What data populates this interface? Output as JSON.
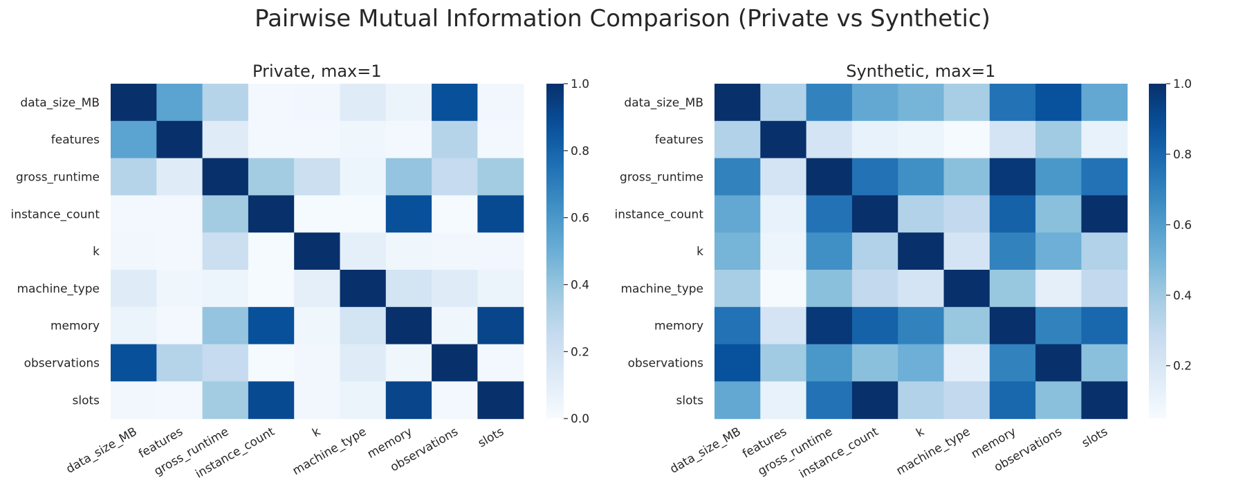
{
  "suptitle": "Pairwise Mutual Information Comparison (Private vs Synthetic)",
  "chart_data": [
    {
      "type": "heatmap",
      "title": "Private, max=1",
      "labels": [
        "data_size_MB",
        "features",
        "gross_runtime",
        "instance_count",
        "k",
        "machine_type",
        "memory",
        "observations",
        "slots"
      ],
      "colormap": "Blues",
      "colorbar": {
        "vmin": 0.0,
        "vmax": 1.0,
        "ticks": [
          "0.0",
          "0.2",
          "0.4",
          "0.6",
          "0.8",
          "1.0"
        ]
      },
      "values": [
        [
          1.0,
          0.55,
          0.3,
          0.02,
          0.03,
          0.12,
          0.06,
          0.88,
          0.03
        ],
        [
          0.55,
          1.0,
          0.12,
          0.02,
          0.02,
          0.04,
          0.02,
          0.3,
          0.02
        ],
        [
          0.3,
          0.12,
          1.0,
          0.36,
          0.22,
          0.05,
          0.4,
          0.25,
          0.36
        ],
        [
          0.02,
          0.02,
          0.36,
          1.0,
          0.01,
          0.01,
          0.88,
          0.01,
          0.9
        ],
        [
          0.03,
          0.02,
          0.22,
          0.01,
          1.0,
          0.09,
          0.04,
          0.03,
          0.03
        ],
        [
          0.12,
          0.04,
          0.05,
          0.01,
          0.09,
          1.0,
          0.18,
          0.12,
          0.06
        ],
        [
          0.06,
          0.02,
          0.4,
          0.88,
          0.04,
          0.18,
          1.0,
          0.04,
          0.92
        ],
        [
          0.88,
          0.3,
          0.25,
          0.01,
          0.03,
          0.12,
          0.04,
          1.0,
          0.02
        ],
        [
          0.03,
          0.02,
          0.36,
          0.9,
          0.03,
          0.06,
          0.92,
          0.02,
          1.0
        ]
      ]
    },
    {
      "type": "heatmap",
      "title": "Synthetic, max=1",
      "labels": [
        "data_size_MB",
        "features",
        "gross_runtime",
        "instance_count",
        "k",
        "machine_type",
        "memory",
        "observations",
        "slots"
      ],
      "colormap": "Blues",
      "colorbar": {
        "vmin": 0.05,
        "vmax": 1.0,
        "ticks": [
          "0.2",
          "0.4",
          "0.6",
          "0.8",
          "1.0"
        ]
      },
      "values": [
        [
          1.0,
          0.35,
          0.7,
          0.55,
          0.5,
          0.38,
          0.76,
          0.88,
          0.55
        ],
        [
          0.35,
          1.0,
          0.22,
          0.12,
          0.1,
          0.06,
          0.22,
          0.4,
          0.12
        ],
        [
          0.7,
          0.22,
          1.0,
          0.76,
          0.65,
          0.45,
          0.97,
          0.62,
          0.76
        ],
        [
          0.55,
          0.12,
          0.76,
          1.0,
          0.35,
          0.3,
          0.82,
          0.45,
          1.0
        ],
        [
          0.5,
          0.1,
          0.65,
          0.35,
          1.0,
          0.22,
          0.7,
          0.52,
          0.35
        ],
        [
          0.38,
          0.06,
          0.45,
          0.3,
          0.22,
          1.0,
          0.42,
          0.14,
          0.3
        ],
        [
          0.76,
          0.22,
          0.97,
          0.82,
          0.7,
          0.42,
          1.0,
          0.7,
          0.8
        ],
        [
          0.88,
          0.4,
          0.62,
          0.45,
          0.52,
          0.14,
          0.7,
          1.0,
          0.45
        ],
        [
          0.55,
          0.12,
          0.76,
          1.0,
          0.35,
          0.3,
          0.8,
          0.45,
          1.0
        ]
      ]
    }
  ]
}
